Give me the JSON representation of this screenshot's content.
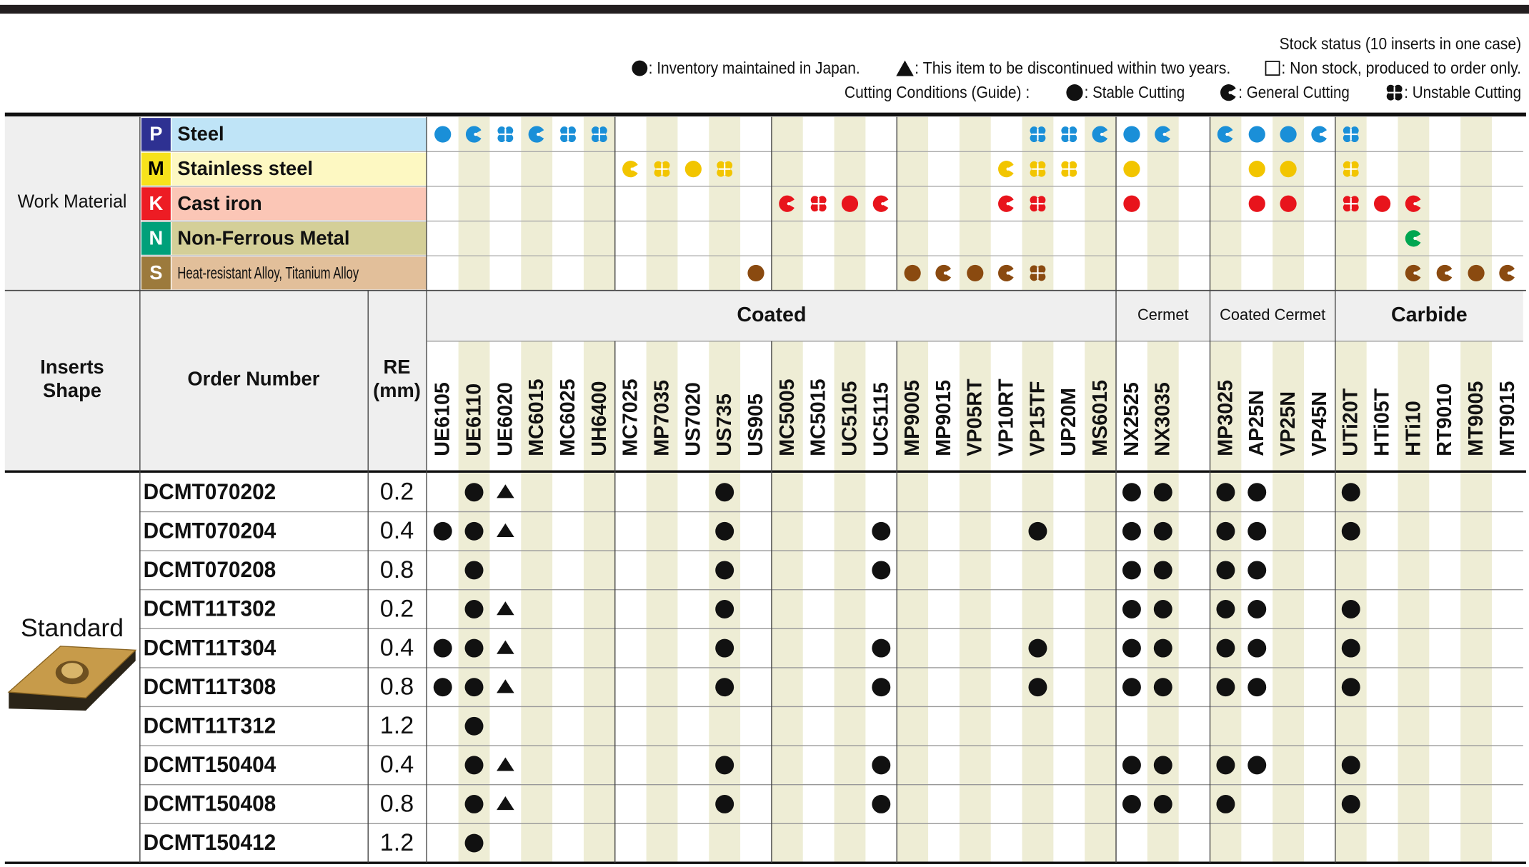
{
  "legend": {
    "stock_title": "Stock status (10 inserts in one case)",
    "stock": [
      ": Inventory maintained in Japan.",
      ": This item to be discontinued within two years.",
      ": Non stock, produced to order only."
    ],
    "cutting_title": "Cutting Conditions (Guide) :",
    "cutting": [
      ": Stable Cutting",
      ": General Cutting",
      ": Unstable Cutting"
    ]
  },
  "work_material_label": "Work Material",
  "work_materials": [
    {
      "letter": "P",
      "name": "Steel",
      "label_color": "#2e3192",
      "letter_color": "#ffffff",
      "row_color": "#bfe4f7",
      "color": "#1a8fd8",
      "conditions": {
        "UE6105": 0,
        "UE6110": 1,
        "UE6020": 2,
        "MC6015": 1,
        "MC6025": 2,
        "UH6400": 2,
        "VP15TF": 2,
        "UP20M": 2,
        "MS6015": 1,
        "NX2525": 0,
        "NX3035": 1,
        "MP3025": 1,
        "AP25N": 0,
        "VP25N": 0,
        "VP45N": 1,
        "UTi20T": 2
      }
    },
    {
      "letter": "M",
      "name": "Stainless steel",
      "label_color": "#f7e21b",
      "letter_color": "#000000",
      "row_color": "#fdf8c2",
      "color": "#f2c500",
      "conditions": {
        "MC7025": 1,
        "MP7035": 2,
        "US7020": 0,
        "US735": 2,
        "VP10RT": 1,
        "VP15TF": 2,
        "UP20M": 2,
        "NX2525": 0,
        "AP25N": 0,
        "VP25N": 0,
        "UTi20T": 2
      }
    },
    {
      "letter": "K",
      "name": "Cast iron",
      "label_color": "#ed1c24",
      "letter_color": "#ffffff",
      "row_color": "#fbc6b6",
      "color": "#e8141c",
      "conditions": {
        "MC5005": 1,
        "MC5015": 2,
        "UC5105": 0,
        "UC5115": 1,
        "VP10RT": 1,
        "VP15TF": 2,
        "NX2525": 0,
        "AP25N": 0,
        "VP25N": 0,
        "UTi20T": 2,
        "HTi05T": 0,
        "HTi10": 1
      }
    },
    {
      "letter": "N",
      "name": "Non-Ferrous Metal",
      "label_color": "#00a07a",
      "letter_color": "#ffffff",
      "row_color": "#d4cf98",
      "color": "#00a651",
      "conditions": {
        "HTi10": 1
      }
    },
    {
      "letter": "S",
      "name": "Heat-resistant Alloy, Titanium Alloy",
      "label_color": "#9c7a3c",
      "letter_color": "#ffffff",
      "row_color": "#e2bf9a",
      "color": "#8a4a10",
      "conditions": {
        "US905": 0,
        "MP9005": 0,
        "MP9015": 1,
        "VP05RT": 0,
        "VP10RT": 1,
        "VP15TF": 2,
        "HTi10": 1,
        "RT9010": 1,
        "MT9005": 0,
        "MT9015": 1
      }
    }
  ],
  "header": {
    "inserts_shape": [
      "Inserts",
      "Shape"
    ],
    "order_number": "Order Number",
    "re": "RE",
    "re_unit": "(mm)"
  },
  "grade_groups": [
    {
      "name": "Coated",
      "subgroups": [
        [
          "UE6105",
          "UE6110",
          "UE6020",
          "MC6015",
          "MC6025",
          "UH6400"
        ],
        [
          "MC7025",
          "MP7035",
          "US7020",
          "US735",
          "US905"
        ],
        [
          "MC5005",
          "MC5015",
          "UC5105",
          "UC5115"
        ],
        [
          "MP9005",
          "MP9015",
          "VP05RT",
          "VP10RT",
          "VP15TF",
          "UP20M",
          "MS6015"
        ]
      ]
    },
    {
      "name": "Cermet",
      "subgroups": [
        [
          "NX2525",
          "NX3035",
          null
        ]
      ]
    },
    {
      "name": "Coated Cermet",
      "subgroups": [
        [
          "MP3025",
          "AP25N",
          "VP25N",
          "VP45N"
        ]
      ]
    },
    {
      "name": "Carbide",
      "subgroups": [
        [
          "UTi20T",
          "HTi05T",
          "HTi10",
          "RT9010",
          "MT9005",
          "MT9015"
        ]
      ]
    }
  ],
  "shape": "Standard",
  "rows": [
    {
      "order_number": "DCMT070202",
      "re": 0.2,
      "stock": {
        "UE6110": 0,
        "UE6020": 1,
        "US735": 0,
        "NX2525": 0,
        "NX3035": 0,
        "MP3025": 0,
        "AP25N": 0,
        "UTi20T": 0
      }
    },
    {
      "order_number": "DCMT070204",
      "re": 0.4,
      "stock": {
        "UE6105": 0,
        "UE6110": 0,
        "UE6020": 1,
        "US735": 0,
        "UC5115": 0,
        "VP15TF": 0,
        "NX2525": 0,
        "NX3035": 0,
        "MP3025": 0,
        "AP25N": 0,
        "UTi20T": 0
      }
    },
    {
      "order_number": "DCMT070208",
      "re": 0.8,
      "stock": {
        "UE6110": 0,
        "US735": 0,
        "UC5115": 0,
        "NX2525": 0,
        "NX3035": 0,
        "MP3025": 0,
        "AP25N": 0
      }
    },
    {
      "order_number": "DCMT11T302",
      "re": 0.2,
      "stock": {
        "UE6110": 0,
        "UE6020": 1,
        "US735": 0,
        "NX2525": 0,
        "NX3035": 0,
        "MP3025": 0,
        "AP25N": 0,
        "UTi20T": 0
      }
    },
    {
      "order_number": "DCMT11T304",
      "re": 0.4,
      "stock": {
        "UE6105": 0,
        "UE6110": 0,
        "UE6020": 1,
        "US735": 0,
        "UC5115": 0,
        "VP15TF": 0,
        "NX2525": 0,
        "NX3035": 0,
        "MP3025": 0,
        "AP25N": 0,
        "UTi20T": 0
      }
    },
    {
      "order_number": "DCMT11T308",
      "re": 0.8,
      "stock": {
        "UE6105": 0,
        "UE6110": 0,
        "UE6020": 1,
        "US735": 0,
        "UC5115": 0,
        "VP15TF": 0,
        "NX2525": 0,
        "NX3035": 0,
        "MP3025": 0,
        "AP25N": 0,
        "UTi20T": 0
      }
    },
    {
      "order_number": "DCMT11T312",
      "re": 1.2,
      "stock": {
        "UE6110": 0
      }
    },
    {
      "order_number": "DCMT150404",
      "re": 0.4,
      "stock": {
        "UE6110": 0,
        "UE6020": 1,
        "US735": 0,
        "UC5115": 0,
        "NX2525": 0,
        "NX3035": 0,
        "MP3025": 0,
        "AP25N": 0,
        "UTi20T": 0
      }
    },
    {
      "order_number": "DCMT150408",
      "re": 0.8,
      "stock": {
        "UE6110": 0,
        "UE6020": 1,
        "US735": 0,
        "UC5115": 0,
        "NX2525": 0,
        "NX3035": 0,
        "MP3025": 0,
        "UTi20T": 0
      }
    },
    {
      "order_number": "DCMT150412",
      "re": 1.2,
      "stock": {
        "UE6110": 0
      }
    }
  ]
}
